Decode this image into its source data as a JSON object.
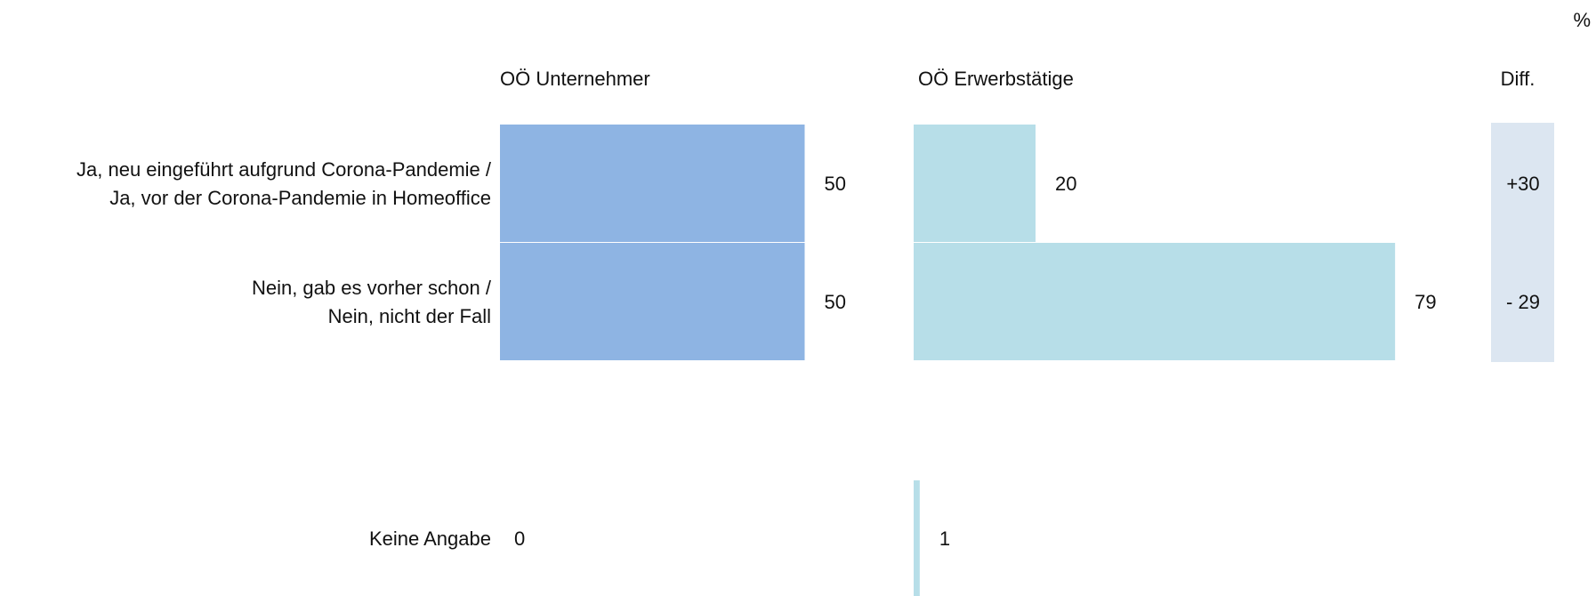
{
  "unit_label": "%",
  "chart_data": {
    "type": "bar",
    "categories": [
      [
        "Ja, neu eingeführt aufgrund Corona-Pandemie /",
        "Ja, vor der Corona-Pandemie in Homeoffice"
      ],
      [
        "Nein, gab es vorher schon /",
        "Nein, nicht der Fall"
      ],
      [
        "Keine Angabe"
      ]
    ],
    "series": [
      {
        "name": "OÖ Unternehmer",
        "values": [
          50,
          50,
          0
        ],
        "labels": [
          "50",
          "50",
          "0"
        ],
        "color": "#8eb4e3"
      },
      {
        "name": "OÖ Erwerbstätige",
        "values": [
          20,
          79,
          1
        ],
        "labels": [
          "20",
          "79",
          "1"
        ],
        "color": "#b7dee8"
      }
    ],
    "diff": {
      "header": "Diff.",
      "labels": [
        "+30",
        "- 29"
      ],
      "colors": [
        "#111111",
        "#ff0000"
      ],
      "background": "#dce6f1"
    },
    "xlim": [
      0,
      100
    ],
    "legend_placement": "column headers",
    "grid": false
  }
}
